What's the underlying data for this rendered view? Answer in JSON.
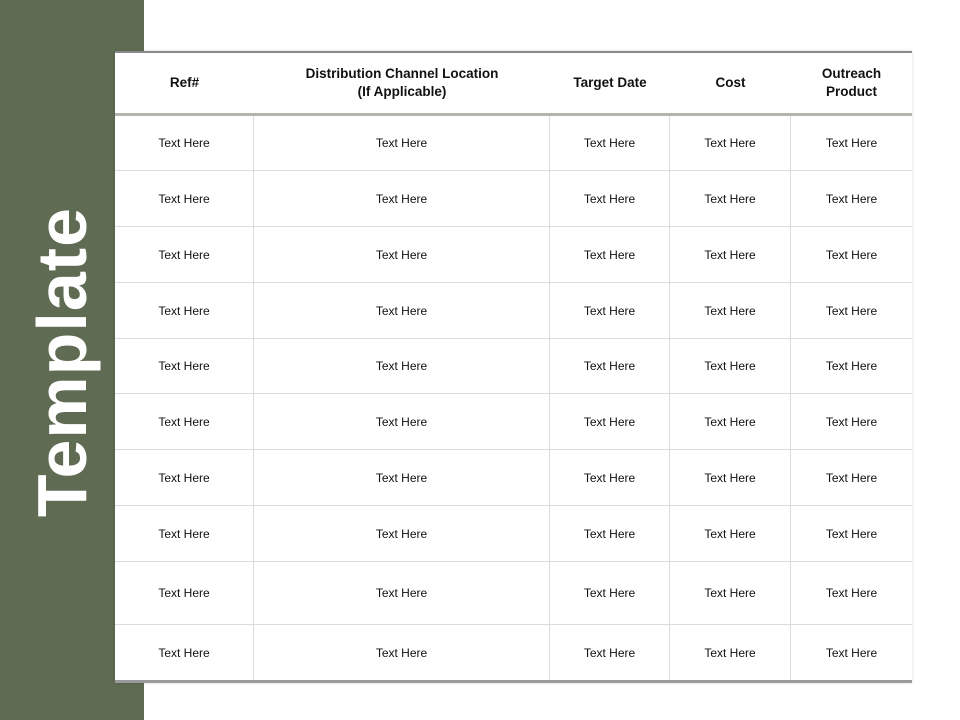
{
  "side_title": "Template",
  "colors": {
    "sidebar": "#5f6b53"
  },
  "table": {
    "headers": [
      "Ref#",
      "Distribution Channel Location\n(If Applicable)",
      "Target Date",
      "Cost",
      "Outreach\nProduct"
    ],
    "rows": [
      [
        "Text Here",
        "Text Here",
        "Text Here",
        "Text Here",
        "Text Here"
      ],
      [
        "Text Here",
        "Text Here",
        "Text Here",
        "Text Here",
        "Text Here"
      ],
      [
        "Text Here",
        "Text Here",
        "Text Here",
        "Text Here",
        "Text Here"
      ],
      [
        "Text Here",
        "Text Here",
        "Text Here",
        "Text Here",
        "Text Here"
      ],
      [
        "Text Here",
        "Text Here",
        "Text Here",
        "Text Here",
        "Text Here"
      ],
      [
        "Text Here",
        "Text Here",
        "Text Here",
        "Text Here",
        "Text Here"
      ],
      [
        "Text Here",
        "Text Here",
        "Text Here",
        "Text Here",
        "Text Here"
      ],
      [
        "Text Here",
        "Text Here",
        "Text Here",
        "Text Here",
        "Text Here"
      ],
      [
        "Text Here",
        "Text Here",
        "Text Here",
        "Text Here",
        "Text Here"
      ],
      [
        "Text Here",
        "Text Here",
        "Text Here",
        "Text Here",
        "Text Here"
      ]
    ]
  }
}
